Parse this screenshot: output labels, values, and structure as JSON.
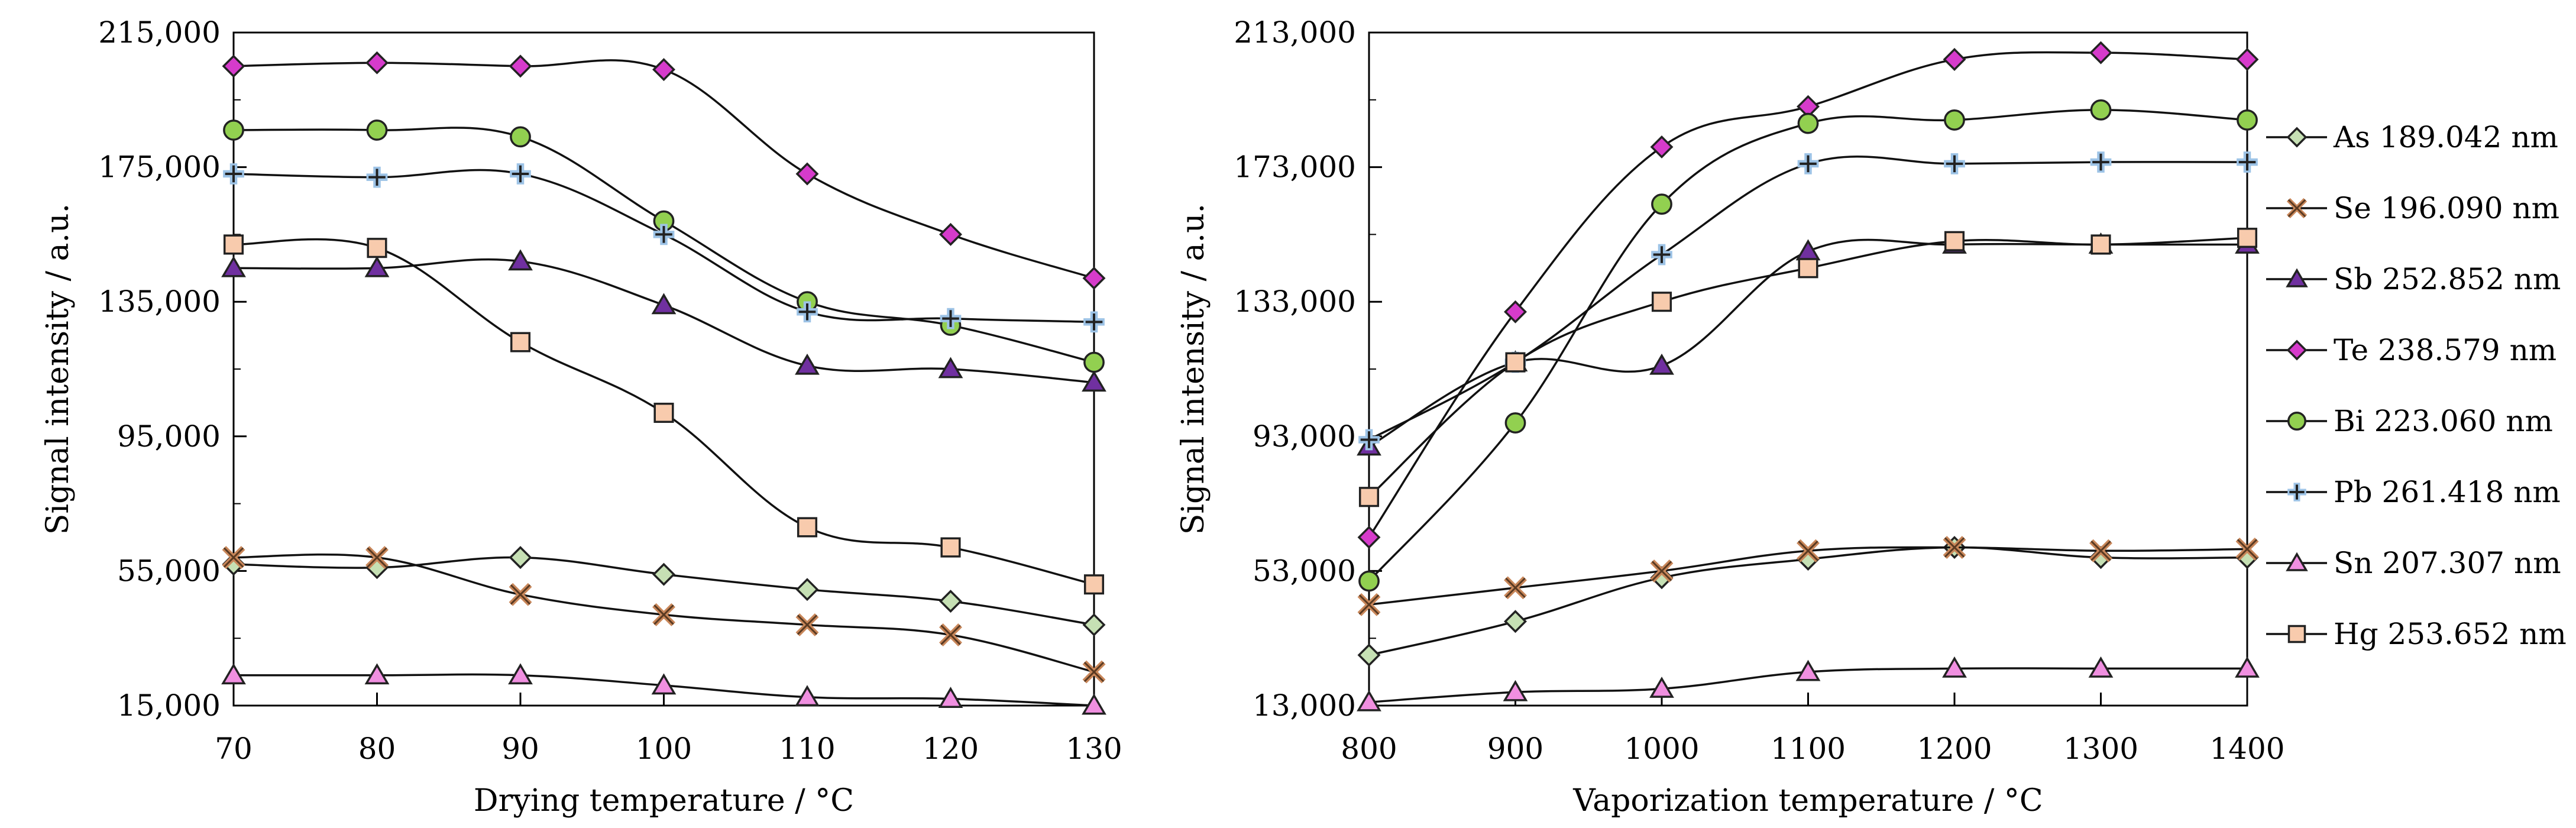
{
  "chart_data": [
    {
      "type": "line",
      "title": "",
      "xlabel": "Drying temperature / °C",
      "ylabel": "Signal intensity / a.u.",
      "xlim": [
        70,
        130
      ],
      "ylim": [
        15000,
        215000
      ],
      "x": [
        70,
        80,
        90,
        100,
        110,
        120,
        130
      ],
      "x_tick_labels": [
        "70",
        "80",
        "90",
        "100",
        "110",
        "120",
        "130"
      ],
      "y_ticks": [
        15000,
        55000,
        95000,
        135000,
        175000,
        215000
      ],
      "y_tick_labels": [
        "15,000",
        "55,000",
        "95,000",
        "135,000",
        "175,000",
        "215,000"
      ],
      "grid": false,
      "series": [
        {
          "name": "As 189.042 nm",
          "marker": "diamond",
          "color": "#c6e0b4",
          "values": [
            57000,
            56000,
            59000,
            54000,
            49500,
            46000,
            39000
          ]
        },
        {
          "name": "Se 196.090 nm",
          "marker": "cross",
          "color": "#c9875a",
          "values": [
            59000,
            59000,
            48000,
            42000,
            39000,
            36000,
            25000
          ]
        },
        {
          "name": "Sb 252.852 nm",
          "marker": "triangle",
          "color": "#7030a0",
          "values": [
            145000,
            145000,
            147000,
            134000,
            116000,
            115000,
            111000
          ]
        },
        {
          "name": "Te 238.579 nm",
          "marker": "diamond",
          "color": "#d63bcb",
          "values": [
            205000,
            206000,
            205000,
            204000,
            173000,
            155000,
            142000
          ]
        },
        {
          "name": "Bi 223.060 nm",
          "marker": "circle",
          "color": "#92d050",
          "values": [
            186000,
            186000,
            184000,
            159000,
            135000,
            128000,
            117000
          ]
        },
        {
          "name": "Pb 261.418 nm",
          "marker": "plus",
          "color": "#9dc3e6",
          "values": [
            173000,
            172000,
            173000,
            155000,
            132000,
            130000,
            129000
          ]
        },
        {
          "name": "Sn 207.307 nm",
          "marker": "triangle",
          "color": "#f08fe0",
          "values": [
            24000,
            24000,
            24000,
            21000,
            17500,
            17000,
            15000
          ]
        },
        {
          "name": "Hg 253.652 nm",
          "marker": "square",
          "color": "#f8cbad",
          "values": [
            152000,
            151000,
            123000,
            102000,
            68000,
            62000,
            51000
          ]
        }
      ]
    },
    {
      "type": "line",
      "title": "",
      "xlabel": "Vaporization temperature / °C",
      "ylabel": "Signal intensity / a.u.",
      "xlim": [
        800,
        1400
      ],
      "ylim": [
        13000,
        213000
      ],
      "x": [
        800,
        900,
        1000,
        1100,
        1200,
        1300,
        1400
      ],
      "x_tick_labels": [
        "800",
        "900",
        "1000",
        "1100",
        "1200",
        "1300",
        "1400"
      ],
      "y_ticks": [
        13000,
        53000,
        93000,
        133000,
        173000,
        213000
      ],
      "y_tick_labels": [
        "13,000",
        "53,000",
        "93,000",
        "133,000",
        "173,000",
        "213,000"
      ],
      "grid": false,
      "series": [
        {
          "name": "As 189.042 nm",
          "marker": "diamond",
          "color": "#c6e0b4",
          "values": [
            28000,
            38000,
            51000,
            56500,
            60000,
            57000,
            57000
          ]
        },
        {
          "name": "Se 196.090 nm",
          "marker": "cross",
          "color": "#c9875a",
          "values": [
            43000,
            48000,
            53000,
            59000,
            60000,
            59000,
            59500
          ]
        },
        {
          "name": "Sb 252.852 nm",
          "marker": "triangle",
          "color": "#7030a0",
          "values": [
            90000,
            115000,
            114000,
            148000,
            150000,
            150000,
            150000
          ]
        },
        {
          "name": "Te 238.579 nm",
          "marker": "diamond",
          "color": "#d63bcb",
          "values": [
            63000,
            130000,
            179000,
            191000,
            205000,
            207000,
            205000
          ]
        },
        {
          "name": "Bi 223.060 nm",
          "marker": "circle",
          "color": "#92d050",
          "values": [
            50000,
            97000,
            162000,
            186000,
            187000,
            190000,
            187000
          ]
        },
        {
          "name": "Pb 261.418 nm",
          "marker": "plus",
          "color": "#9dc3e6",
          "values": [
            92000,
            115000,
            147000,
            174000,
            174000,
            174500,
            174500
          ]
        },
        {
          "name": "Sn 207.307 nm",
          "marker": "triangle",
          "color": "#f08fe0",
          "values": [
            14000,
            17000,
            18000,
            23000,
            24000,
            24000,
            24000
          ]
        },
        {
          "name": "Hg 253.652 nm",
          "marker": "square",
          "color": "#f8cbad",
          "values": [
            75000,
            115000,
            133000,
            143000,
            151000,
            150000,
            152000
          ]
        }
      ]
    }
  ]
}
